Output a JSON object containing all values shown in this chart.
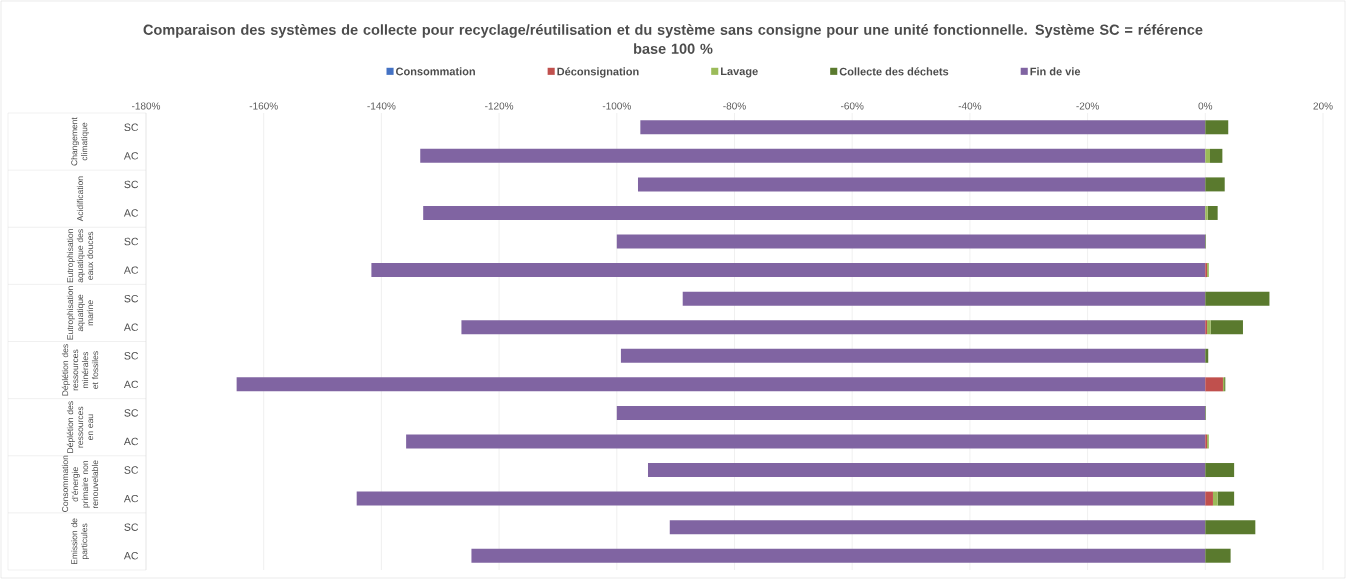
{
  "chart_data": {
    "type": "bar",
    "orientation": "horizontal",
    "stacked": true,
    "title": "Comparaison  des systèmes de collecte pour recyclage/réutilisation et du système sans consigne pour une unité fonctionnelle. Système SC = référence base 100 %",
    "categories": [
      "SC",
      "AC",
      "SC",
      "AC",
      "SC",
      "AC",
      "SC",
      "AC",
      "SC",
      "AC",
      "SC",
      "AC",
      "SC",
      "AC",
      "SC",
      "AC"
    ],
    "annotations": [
      "Changement climatique",
      "Acidification",
      "Eutrophisation aquatique des eaux douces",
      "Eutrophisation aquatique marine",
      "Déplétion des ressources minérales et fossiles",
      "Déplétion des ressources en eau",
      "Consommation d’énergie primaire non renouvelable",
      "Emission de particules"
    ],
    "xlim": [
      -180,
      20
    ],
    "xticks": [
      {
        "value": -180,
        "label": "-180%"
      },
      {
        "value": -160,
        "label": "-160%"
      },
      {
        "value": -140,
        "label": "-140%"
      },
      {
        "value": -120,
        "label": "-120%"
      },
      {
        "value": -100,
        "label": "-100%"
      },
      {
        "value": -80,
        "label": "-80%"
      },
      {
        "value": -60,
        "label": "-60%"
      },
      {
        "value": -40,
        "label": "-40%"
      },
      {
        "value": -20,
        "label": "-20%"
      },
      {
        "value": 0,
        "label": "0%"
      },
      {
        "value": 20,
        "label": "20%"
      }
    ],
    "grid": "x",
    "legend": "top",
    "series": [
      {
        "name": "Consommation",
        "color": "#4472c4",
        "values": [
          0,
          0,
          0,
          0,
          0,
          0,
          0,
          0,
          0,
          0,
          0,
          0,
          0,
          0,
          0,
          0
        ]
      },
      {
        "name": "Déconsignation",
        "color": "#c0504d",
        "values": [
          0,
          0,
          0,
          0,
          0,
          0.3,
          0,
          0.3,
          0,
          3.0,
          0,
          0.3,
          0,
          1.3,
          0,
          0
        ]
      },
      {
        "name": "Lavage",
        "color": "#9bbb59",
        "values": [
          0,
          0.8,
          0,
          0.4,
          0,
          0.3,
          0,
          0.6,
          0,
          0.2,
          0,
          0.3,
          0,
          0.8,
          0,
          0
        ]
      },
      {
        "name": "Collecte des déchets",
        "color": "#5a7a2e",
        "values": [
          3.9,
          2.1,
          3.3,
          1.7,
          0.1,
          0,
          10.9,
          5.5,
          0.5,
          0.2,
          0.1,
          0,
          4.9,
          2.8,
          8.5,
          4.3
        ]
      },
      {
        "name": "Fin de vie",
        "color": "#8064a2",
        "values": [
          -96,
          -133.4,
          -96.4,
          -132.9,
          -100,
          -141.7,
          -88.8,
          -126.4,
          -99.3,
          -164.6,
          -100,
          -135.8,
          -94.7,
          -144.2,
          -91,
          -124.7
        ]
      }
    ]
  }
}
